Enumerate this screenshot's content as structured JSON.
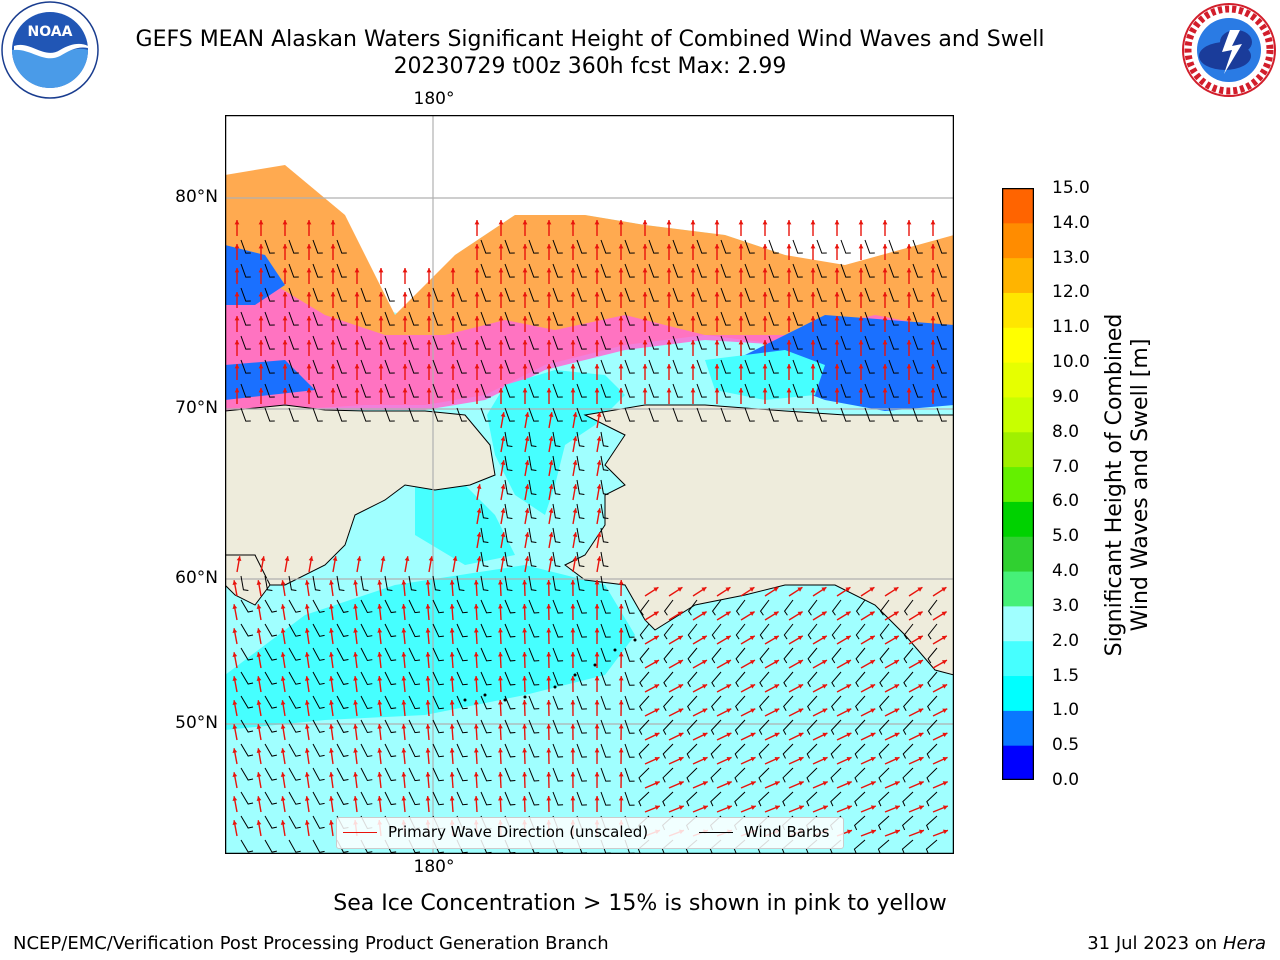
{
  "header": {
    "title_line1": "GEFS MEAN Alaskan Waters Significant Height of Combined Wind Waves and Swell",
    "title_line2": "20230729 t00z 360h fcst   Max: 2.99"
  },
  "logos": {
    "left": {
      "name": "noaa-logo",
      "text": "NOAA",
      "ring_text": "NATIONAL OCEANIC AND ATMOSPHERIC ADMINISTRATION · U.S. DEPARTMENT OF COMMERCE"
    },
    "right": {
      "name": "nws-logo",
      "ring_text": "NATIONAL WEATHER SERVICE"
    }
  },
  "map": {
    "lon_label_top": "180°",
    "lon_label_bottom": "180°",
    "lat_labels": [
      "80°N",
      "70°N",
      "60°N",
      "50°N"
    ],
    "colors": {
      "land": "#eeecdc",
      "coast": "#000000",
      "grid": "#b0b0b0",
      "wave_arrow": "#e8130c",
      "wind_barb": "#000000"
    },
    "legend": {
      "wave_label": "Primary Wave Direction (unscaled)",
      "wind_label": "Wind Barbs"
    }
  },
  "colorbar": {
    "label_line1": "Significant Height of Combined",
    "label_line2": "Wind Waves and Swell [m]",
    "ticks": [
      "15.0",
      "14.0",
      "13.0",
      "12.0",
      "11.0",
      "10.0",
      "9.0",
      "8.0",
      "7.0",
      "6.0",
      "5.0",
      "4.0",
      "3.0",
      "2.0",
      "1.5",
      "1.0",
      "0.5",
      "0.0"
    ],
    "colors_bottom_to_top": [
      "#0000ff",
      "#0a78ff",
      "#00ffff",
      "#46ffff",
      "#a0ffff",
      "#46f078",
      "#30d030",
      "#00d200",
      "#64f000",
      "#a0f000",
      "#c8ff00",
      "#e6ff00",
      "#ffff00",
      "#ffe600",
      "#ffb400",
      "#ff8c00",
      "#ff6400",
      "#ff3c00",
      "#ff0000"
    ]
  },
  "footer": {
    "note": "Sea Ice Concentration > 15% is shown in pink to yellow",
    "credit": "NCEP/EMC/Verification Post Processing Product Generation Branch",
    "date_prefix": "31 Jul 2023 on ",
    "machine": "Hera"
  }
}
